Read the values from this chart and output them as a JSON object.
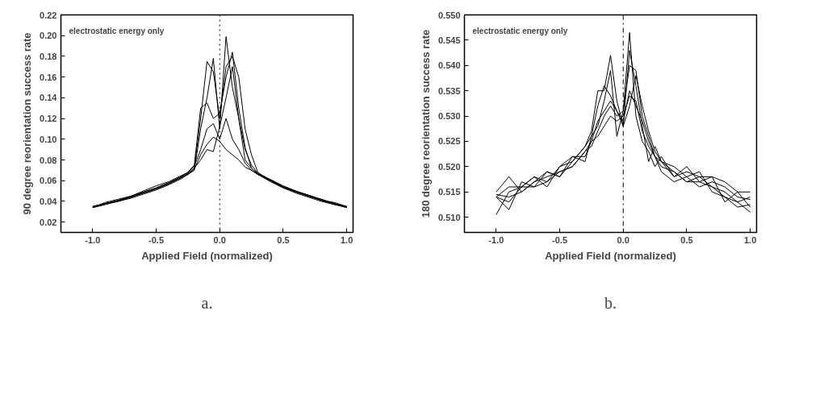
{
  "chart_data": [
    {
      "type": "line",
      "xlabel": "Applied Field (normalized)",
      "ylabel": "90 degree reorientation success rate",
      "annotations": [
        "electrostatic energy only",
        "a."
      ],
      "x": [
        -1,
        -0.9,
        -0.8,
        -0.7,
        -0.6,
        -0.5,
        -0.4,
        -0.3,
        -0.25,
        -0.2,
        -0.15,
        -0.1,
        -0.05,
        0,
        0.05,
        0.1,
        0.15,
        0.2,
        0.25,
        0.3,
        0.4,
        0.5,
        0.6,
        0.7,
        0.8,
        0.9,
        1
      ],
      "xlim": [
        -1.25,
        1.05
      ],
      "xticks": [
        {
          "value": -1,
          "label": "-1.0"
        },
        {
          "value": -0.5,
          "label": "-0.5"
        },
        {
          "value": 0,
          "label": "0.0"
        },
        {
          "value": 0.5,
          "label": "0.5"
        },
        {
          "value": 1,
          "label": "1.0"
        }
      ],
      "ylim": [
        0.01,
        0.22
      ],
      "yticks": [
        {
          "value": 0.02,
          "label": "0.02"
        },
        {
          "value": 0.04,
          "label": "0.04"
        },
        {
          "value": 0.06,
          "label": "0.06"
        },
        {
          "value": 0.08,
          "label": "0.08"
        },
        {
          "value": 0.1,
          "label": "0.10"
        },
        {
          "value": 0.12,
          "label": "0.12"
        },
        {
          "value": 0.14,
          "label": "0.14"
        },
        {
          "value": 0.16,
          "label": "0.16"
        },
        {
          "value": 0.18,
          "label": "0.18"
        },
        {
          "value": 0.2,
          "label": "0.20"
        },
        {
          "value": 0.22,
          "label": "0.22"
        }
      ],
      "grid": false,
      "line_style": "solid",
      "marker": "none",
      "ref_lines": [
        {
          "axis": "x",
          "value": 0,
          "color": "#000000",
          "line_style": "dotted"
        }
      ],
      "series": [
        {
          "color": "#000000",
          "values": [
            0.034,
            0.037,
            0.04,
            0.044,
            0.048,
            0.052,
            0.057,
            0.063,
            0.067,
            0.072,
            0.12,
            0.175,
            0.165,
            0.12,
            0.17,
            0.18,
            0.16,
            0.11,
            0.085,
            0.068,
            0.06,
            0.054,
            0.049,
            0.045,
            0.041,
            0.038,
            0.034
          ]
        },
        {
          "color": "#000000",
          "values": [
            0.035,
            0.038,
            0.041,
            0.045,
            0.049,
            0.053,
            0.058,
            0.064,
            0.066,
            0.07,
            0.11,
            0.14,
            0.178,
            0.11,
            0.199,
            0.15,
            0.12,
            0.09,
            0.075,
            0.067,
            0.061,
            0.055,
            0.05,
            0.046,
            0.042,
            0.038,
            0.035
          ]
        },
        {
          "color": "#000000",
          "values": [
            0.034,
            0.039,
            0.042,
            0.045,
            0.05,
            0.055,
            0.059,
            0.065,
            0.068,
            0.075,
            0.13,
            0.135,
            0.12,
            0.125,
            0.16,
            0.184,
            0.13,
            0.092,
            0.072,
            0.066,
            0.059,
            0.053,
            0.048,
            0.044,
            0.04,
            0.037,
            0.034
          ]
        },
        {
          "color": "#000000",
          "values": [
            0.035,
            0.038,
            0.04,
            0.043,
            0.047,
            0.051,
            0.056,
            0.062,
            0.066,
            0.071,
            0.085,
            0.095,
            0.102,
            0.098,
            0.09,
            0.085,
            0.08,
            0.073,
            0.07,
            0.066,
            0.06,
            0.053,
            0.049,
            0.045,
            0.041,
            0.039,
            0.035
          ]
        },
        {
          "color": "#000000",
          "values": [
            0.034,
            0.037,
            0.041,
            0.044,
            0.048,
            0.052,
            0.057,
            0.063,
            0.067,
            0.072,
            0.08,
            0.09,
            0.088,
            0.112,
            0.14,
            0.17,
            0.12,
            0.08,
            0.072,
            0.067,
            0.061,
            0.054,
            0.05,
            0.045,
            0.042,
            0.038,
            0.034
          ]
        },
        {
          "color": "#000000",
          "values": [
            0.035,
            0.038,
            0.04,
            0.044,
            0.049,
            0.053,
            0.058,
            0.064,
            0.068,
            0.074,
            0.09,
            0.11,
            0.115,
            0.1,
            0.12,
            0.1,
            0.09,
            0.077,
            0.07,
            0.066,
            0.06,
            0.054,
            0.049,
            0.046,
            0.041,
            0.037,
            0.035
          ]
        }
      ]
    },
    {
      "type": "line",
      "xlabel": "Applied Field (normalized)",
      "ylabel": "180 degree reorientation success rate",
      "annotations": [
        "electrostatic energy only",
        "b."
      ],
      "x": [
        -1,
        -0.9,
        -0.8,
        -0.7,
        -0.6,
        -0.5,
        -0.4,
        -0.3,
        -0.25,
        -0.2,
        -0.15,
        -0.1,
        -0.05,
        0,
        0.05,
        0.1,
        0.15,
        0.2,
        0.25,
        0.3,
        0.4,
        0.5,
        0.6,
        0.7,
        0.8,
        0.9,
        1
      ],
      "xlim": [
        -1.25,
        1.05
      ],
      "xticks": [
        {
          "value": -1,
          "label": "-1.0"
        },
        {
          "value": -0.5,
          "label": "-0.5"
        },
        {
          "value": 0,
          "label": "0.0"
        },
        {
          "value": 0.5,
          "label": "0.5"
        },
        {
          "value": 1,
          "label": "1.0"
        }
      ],
      "ylim": [
        0.507,
        0.55
      ],
      "yticks": [
        {
          "value": 0.51,
          "label": "0.510"
        },
        {
          "value": 0.515,
          "label": "0.515"
        },
        {
          "value": 0.52,
          "label": "0.520"
        },
        {
          "value": 0.525,
          "label": "0.525"
        },
        {
          "value": 0.53,
          "label": "0.530"
        },
        {
          "value": 0.535,
          "label": "0.535"
        },
        {
          "value": 0.54,
          "label": "0.540"
        },
        {
          "value": 0.545,
          "label": "0.545"
        },
        {
          "value": 0.55,
          "label": "0.550"
        }
      ],
      "grid": false,
      "line_style": "solid",
      "marker": "none",
      "ref_lines": [
        {
          "axis": "x",
          "value": 0,
          "color": "#000000",
          "line_style": "dashdot"
        }
      ],
      "series": [
        {
          "color": "#000000",
          "values": [
            0.5105,
            0.515,
            0.516,
            0.518,
            0.517,
            0.52,
            0.521,
            0.524,
            0.527,
            0.535,
            0.535,
            0.542,
            0.533,
            0.528,
            0.543,
            0.536,
            0.528,
            0.521,
            0.524,
            0.521,
            0.519,
            0.517,
            0.518,
            0.516,
            0.515,
            0.513,
            0.511
          ]
        },
        {
          "color": "#000000",
          "values": [
            0.514,
            0.5115,
            0.517,
            0.516,
            0.519,
            0.518,
            0.522,
            0.521,
            0.526,
            0.528,
            0.533,
            0.539,
            0.526,
            0.531,
            0.5465,
            0.53,
            0.525,
            0.523,
            0.52,
            0.522,
            0.518,
            0.52,
            0.517,
            0.518,
            0.513,
            0.515,
            0.512
          ]
        },
        {
          "color": "#000000",
          "values": [
            0.515,
            0.518,
            0.515,
            0.517,
            0.518,
            0.519,
            0.52,
            0.523,
            0.524,
            0.527,
            0.53,
            0.532,
            0.53,
            0.531,
            0.54,
            0.539,
            0.53,
            0.526,
            0.522,
            0.521,
            0.52,
            0.518,
            0.516,
            0.517,
            0.516,
            0.514,
            0.5135
          ]
        },
        {
          "color": "#000000",
          "values": [
            0.514,
            0.513,
            0.516,
            0.518,
            0.516,
            0.52,
            0.522,
            0.522,
            0.525,
            0.526,
            0.528,
            0.53,
            0.529,
            0.53,
            0.534,
            0.533,
            0.527,
            0.524,
            0.522,
            0.519,
            0.517,
            0.518,
            0.519,
            0.515,
            0.514,
            0.512,
            0.5125
          ]
        },
        {
          "color": "#000000",
          "values": [
            0.5145,
            0.514,
            0.515,
            0.517,
            0.519,
            0.518,
            0.521,
            0.524,
            0.526,
            0.532,
            0.536,
            0.534,
            0.531,
            0.528,
            0.532,
            0.538,
            0.532,
            0.527,
            0.523,
            0.521,
            0.518,
            0.519,
            0.518,
            0.518,
            0.517,
            0.515,
            0.515
          ]
        },
        {
          "color": "#000000",
          "values": [
            0.514,
            0.516,
            0.516,
            0.516,
            0.517,
            0.519,
            0.52,
            0.523,
            0.525,
            0.529,
            0.531,
            0.533,
            0.531,
            0.529,
            0.535,
            0.532,
            0.529,
            0.525,
            0.522,
            0.52,
            0.519,
            0.517,
            0.517,
            0.516,
            0.514,
            0.513,
            0.514
          ]
        }
      ]
    }
  ]
}
